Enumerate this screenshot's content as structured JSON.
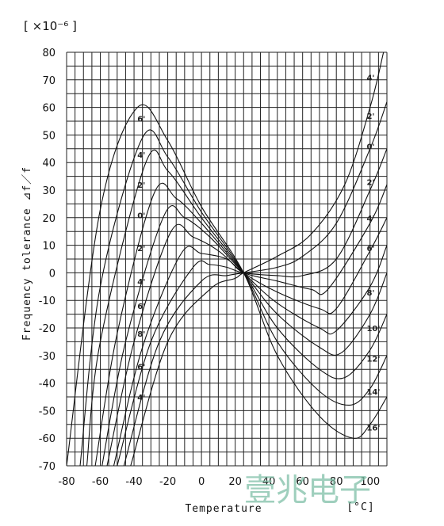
{
  "chart_data": {
    "type": "line",
    "title": "",
    "unit_top": "[ ×10⁻⁶ ]",
    "xlabel": "Temperature",
    "xunit": "[°C]",
    "ylabel": "Frequency tolerance ⊿f／f",
    "xlim": [
      -80,
      110
    ],
    "ylim": [
      -70,
      80
    ],
    "x_ticks": [
      -80,
      -60,
      -40,
      -20,
      0,
      20,
      40,
      60,
      80,
      100
    ],
    "y_ticks": [
      80,
      70,
      60,
      50,
      40,
      30,
      20,
      10,
      0,
      -10,
      -20,
      -30,
      -40,
      -50,
      -60,
      -70
    ],
    "grid": true,
    "reference_temperature": 25,
    "curve_labels_left": [
      "6'",
      "4'",
      "2'",
      "0'",
      "2'",
      "4'",
      "6'",
      "8'",
      "6'",
      "4'"
    ],
    "curve_labels_right": [
      "4'",
      "2'",
      "0'",
      "2'",
      "4'",
      "6'",
      "8'",
      "10'",
      "12'",
      "14'",
      "16'"
    ],
    "series": [
      {
        "values": [
          [
            -80,
            -70
          ],
          [
            -60,
            23
          ],
          [
            -38,
            60
          ],
          [
            -20,
            48
          ],
          [
            0,
            24
          ],
          [
            25,
            0
          ],
          [
            45,
            -30
          ],
          [
            70,
            -52
          ],
          [
            90,
            -60
          ],
          [
            100,
            -55
          ],
          [
            110,
            -45
          ]
        ]
      },
      {
        "values": [
          [
            -72,
            -70
          ],
          [
            -60,
            -5
          ],
          [
            -35,
            49
          ],
          [
            -20,
            42
          ],
          [
            0,
            22
          ],
          [
            25,
            0
          ],
          [
            45,
            -25
          ],
          [
            70,
            -43
          ],
          [
            88,
            -48
          ],
          [
            100,
            -42
          ],
          [
            110,
            -30
          ]
        ]
      },
      {
        "values": [
          [
            -68,
            -70
          ],
          [
            -60,
            -25
          ],
          [
            -33,
            40
          ],
          [
            -20,
            37
          ],
          [
            0,
            20
          ],
          [
            25,
            0
          ],
          [
            45,
            -20
          ],
          [
            70,
            -35
          ],
          [
            85,
            -38
          ],
          [
            100,
            -28
          ],
          [
            110,
            -15
          ]
        ]
      },
      {
        "values": [
          [
            -63,
            -70
          ],
          [
            -50,
            -22
          ],
          [
            -28,
            29
          ],
          [
            -15,
            27
          ],
          [
            0,
            18
          ],
          [
            25,
            0
          ],
          [
            45,
            -15
          ],
          [
            70,
            -27
          ],
          [
            83,
            -29
          ],
          [
            100,
            -15
          ],
          [
            110,
            0
          ]
        ]
      },
      {
        "values": [
          [
            -59,
            -70
          ],
          [
            -45,
            -25
          ],
          [
            -22,
            21
          ],
          [
            -10,
            20
          ],
          [
            5,
            13
          ],
          [
            25,
            0
          ],
          [
            45,
            -11
          ],
          [
            70,
            -20
          ],
          [
            80,
            -21
          ],
          [
            100,
            -5
          ],
          [
            110,
            10
          ]
        ]
      },
      {
        "values": [
          [
            -56,
            -70
          ],
          [
            -40,
            -25
          ],
          [
            -18,
            15
          ],
          [
            -5,
            13
          ],
          [
            10,
            8
          ],
          [
            25,
            0
          ],
          [
            45,
            -7
          ],
          [
            70,
            -13
          ],
          [
            80,
            -13
          ],
          [
            100,
            8
          ],
          [
            110,
            20
          ]
        ]
      },
      {
        "values": [
          [
            -52,
            -70
          ],
          [
            -35,
            -27
          ],
          [
            -12,
            7
          ],
          [
            0,
            7
          ],
          [
            15,
            5
          ],
          [
            25,
            0
          ],
          [
            45,
            -3
          ],
          [
            65,
            -6
          ],
          [
            75,
            -6
          ],
          [
            100,
            18
          ],
          [
            110,
            32
          ]
        ]
      },
      {
        "values": [
          [
            -50,
            -70
          ],
          [
            -30,
            -25
          ],
          [
            -5,
            2
          ],
          [
            5,
            3
          ],
          [
            15,
            2
          ],
          [
            25,
            0
          ],
          [
            45,
            -1
          ],
          [
            60,
            -1
          ],
          [
            80,
            5
          ],
          [
            100,
            30
          ],
          [
            110,
            45
          ]
        ]
      },
      {
        "values": [
          [
            -46,
            -70
          ],
          [
            -25,
            -25
          ],
          [
            0,
            -3
          ],
          [
            15,
            -1
          ],
          [
            25,
            0
          ],
          [
            45,
            2
          ],
          [
            60,
            6
          ],
          [
            80,
            18
          ],
          [
            100,
            45
          ],
          [
            110,
            62
          ]
        ]
      },
      {
        "values": [
          [
            -42,
            -70
          ],
          [
            -20,
            -25
          ],
          [
            5,
            -6
          ],
          [
            20,
            -2
          ],
          [
            25,
            0
          ],
          [
            45,
            6
          ],
          [
            65,
            14
          ],
          [
            85,
            32
          ],
          [
            100,
            60
          ],
          [
            108,
            80
          ]
        ]
      }
    ]
  },
  "watermark": "壹兆电子"
}
